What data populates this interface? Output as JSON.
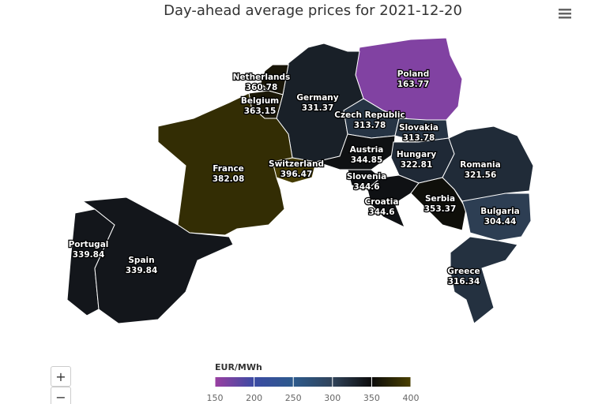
{
  "chart_data": {
    "type": "choropleth",
    "title": "Day-ahead average prices for 2021-12-20",
    "regions": [
      {
        "name": "Poland",
        "value": 163.77
      },
      {
        "name": "Germany",
        "value": 331.37
      },
      {
        "name": "Netherlands",
        "value": 360.78
      },
      {
        "name": "Belgium",
        "value": 363.15
      },
      {
        "name": "France",
        "value": 382.08
      },
      {
        "name": "Switzerland",
        "value": 396.47
      },
      {
        "name": "Czech Republic",
        "value": 313.78
      },
      {
        "name": "Slovakia",
        "value": 313.78
      },
      {
        "name": "Austria",
        "value": 344.85
      },
      {
        "name": "Hungary",
        "value": 322.81
      },
      {
        "name": "Slovenia",
        "value": 344.6
      },
      {
        "name": "Croatia",
        "value": 344.6
      },
      {
        "name": "Serbia",
        "value": 353.37
      },
      {
        "name": "Romania",
        "value": 321.56
      },
      {
        "name": "Bulgaria",
        "value": 304.44
      },
      {
        "name": "Greece",
        "value": 316.34
      },
      {
        "name": "Portugal",
        "value": 339.84
      },
      {
        "name": "Spain",
        "value": 339.84
      }
    ],
    "colorbar_title": "EUR/MWh",
    "clim": [
      150,
      400
    ],
    "cticks": [
      150,
      200,
      250,
      300,
      350,
      400
    ],
    "colorscale": [
      "#9b3fa1",
      "#3b4ba3",
      "#2d5a8c",
      "#30435a",
      "#0b0b0b",
      "#4a4000"
    ]
  },
  "zoom_controls": {
    "zoom_in": "+",
    "zoom_out": "−"
  }
}
